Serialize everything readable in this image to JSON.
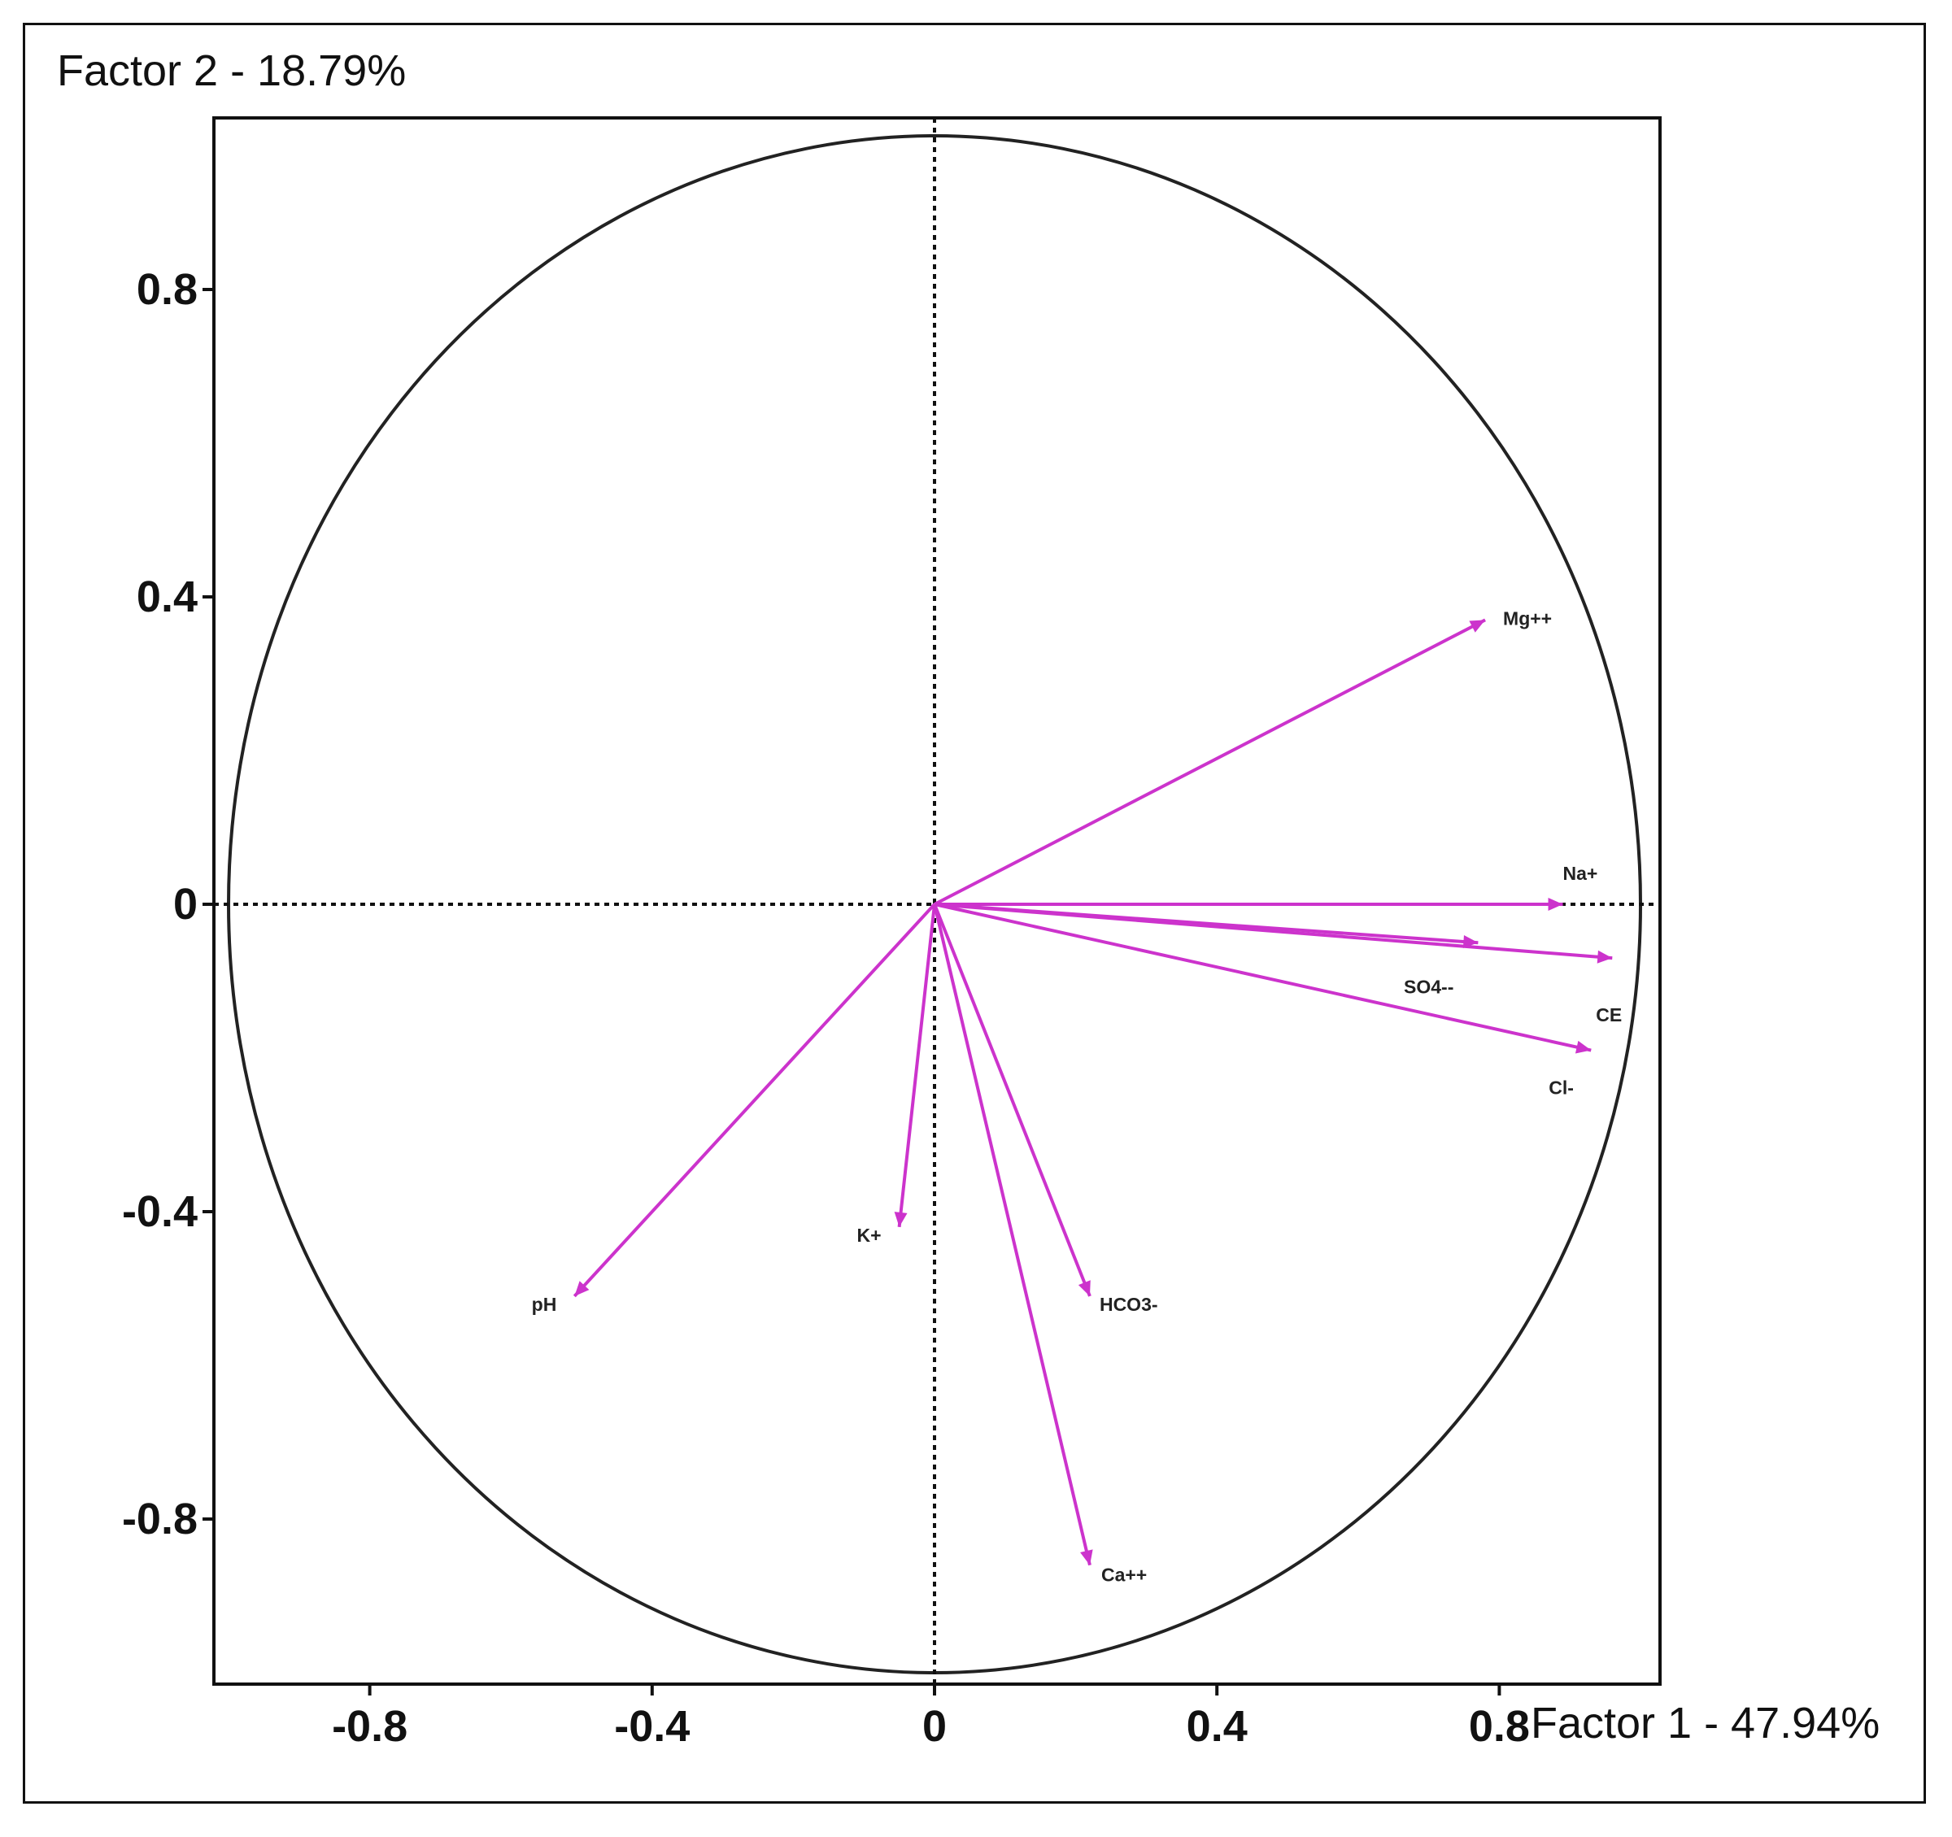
{
  "chart_data": {
    "type": "scatter",
    "subtype": "pca-correlation-circle",
    "xlabel": "Factor 1 - 47.94%",
    "ylabel": "Factor 2 - 18.79%",
    "xticks": [
      "-0.8",
      "-0.4",
      "0",
      "0.4",
      "0.8"
    ],
    "xtick_values": [
      -0.8,
      -0.4,
      0,
      0.4,
      0.8
    ],
    "yticks": [
      "0.8",
      "0.4",
      "0",
      "-0.4",
      "-0.8"
    ],
    "ytick_values": [
      0.8,
      0.4,
      0,
      -0.4,
      -0.8
    ],
    "xlim": [
      -1.0,
      1.0
    ],
    "ylim": [
      -1.0,
      1.0
    ],
    "unit_circle": true,
    "zero_lines": "dotted",
    "vector_color": "#cc33cc",
    "points": [
      {
        "label": "Mg++",
        "x": 0.78,
        "y": 0.37
      },
      {
        "label": "Na+",
        "x": 0.89,
        "y": 0.0
      },
      {
        "label": "SO4--",
        "x": 0.77,
        "y": -0.05
      },
      {
        "label": "CE",
        "x": 0.96,
        "y": -0.07
      },
      {
        "label": "Cl-",
        "x": 0.93,
        "y": -0.19
      },
      {
        "label": "K+",
        "x": -0.05,
        "y": -0.42
      },
      {
        "label": "pH",
        "x": -0.51,
        "y": -0.51
      },
      {
        "label": "HCO3-",
        "x": 0.22,
        "y": -0.51
      },
      {
        "label": "Ca++",
        "x": 0.22,
        "y": -0.86
      }
    ]
  }
}
